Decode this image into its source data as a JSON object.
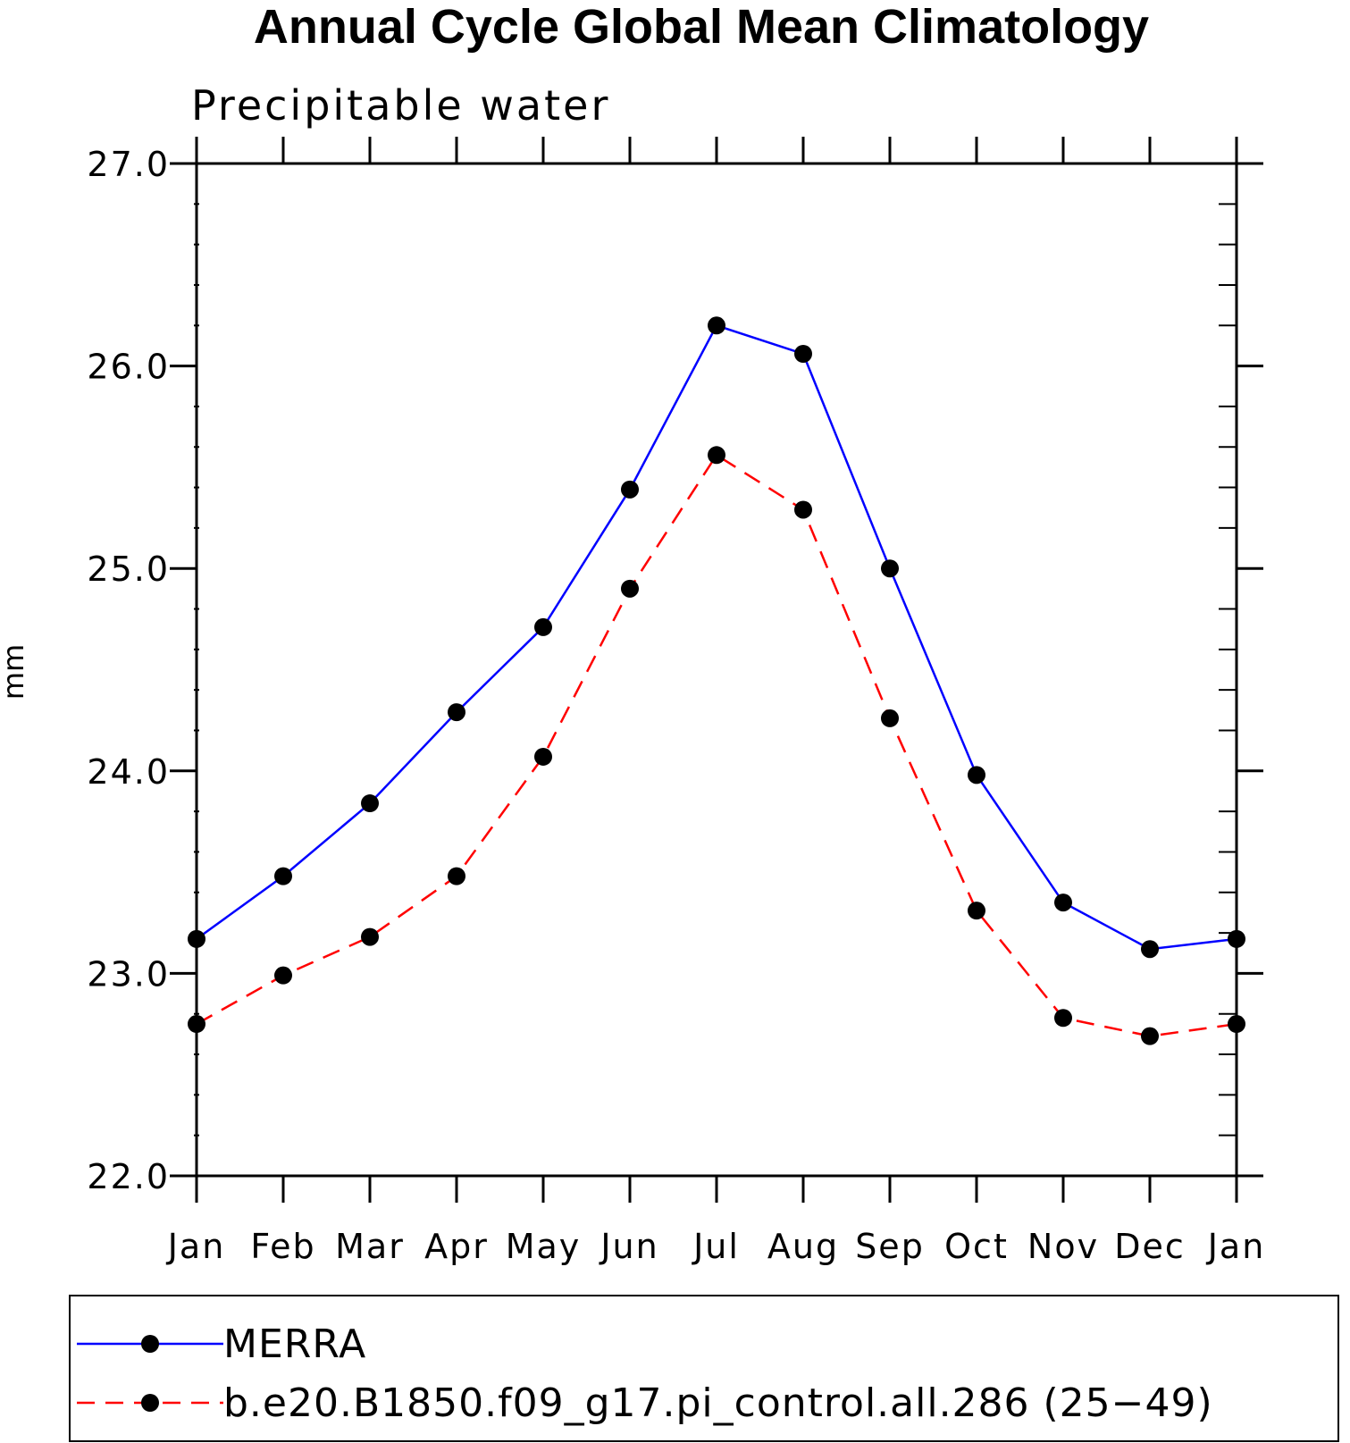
{
  "chart_data": {
    "type": "line",
    "title": "Annual Cycle Global Mean Climatology",
    "subtitle": "Precipitable water",
    "xlabel": "",
    "ylabel": "mm",
    "categories": [
      "Jan",
      "Feb",
      "Mar",
      "Apr",
      "May",
      "Jun",
      "Jul",
      "Aug",
      "Sep",
      "Oct",
      "Nov",
      "Dec",
      "Jan"
    ],
    "ylim": [
      22.0,
      27.0
    ],
    "yticks": [
      "22.0",
      "23.0",
      "24.0",
      "25.0",
      "26.0",
      "27.0"
    ],
    "grid": false,
    "legend_position": "bottom",
    "series": [
      {
        "name": "MERRA",
        "color": "#0000ff",
        "style": "solid",
        "marker": "filled-circle",
        "values": [
          23.17,
          23.48,
          23.84,
          24.29,
          24.71,
          25.39,
          26.2,
          26.06,
          25.0,
          23.98,
          23.35,
          23.12,
          23.17
        ]
      },
      {
        "name": "b.e20.B1850.f09_g17.pi_control.all.286 (25−49)",
        "color": "#ff0000",
        "style": "dashed",
        "marker": "filled-circle",
        "values": [
          22.75,
          22.99,
          23.18,
          23.48,
          24.07,
          24.9,
          25.56,
          25.29,
          24.26,
          23.31,
          22.78,
          22.69,
          22.75
        ]
      }
    ]
  }
}
